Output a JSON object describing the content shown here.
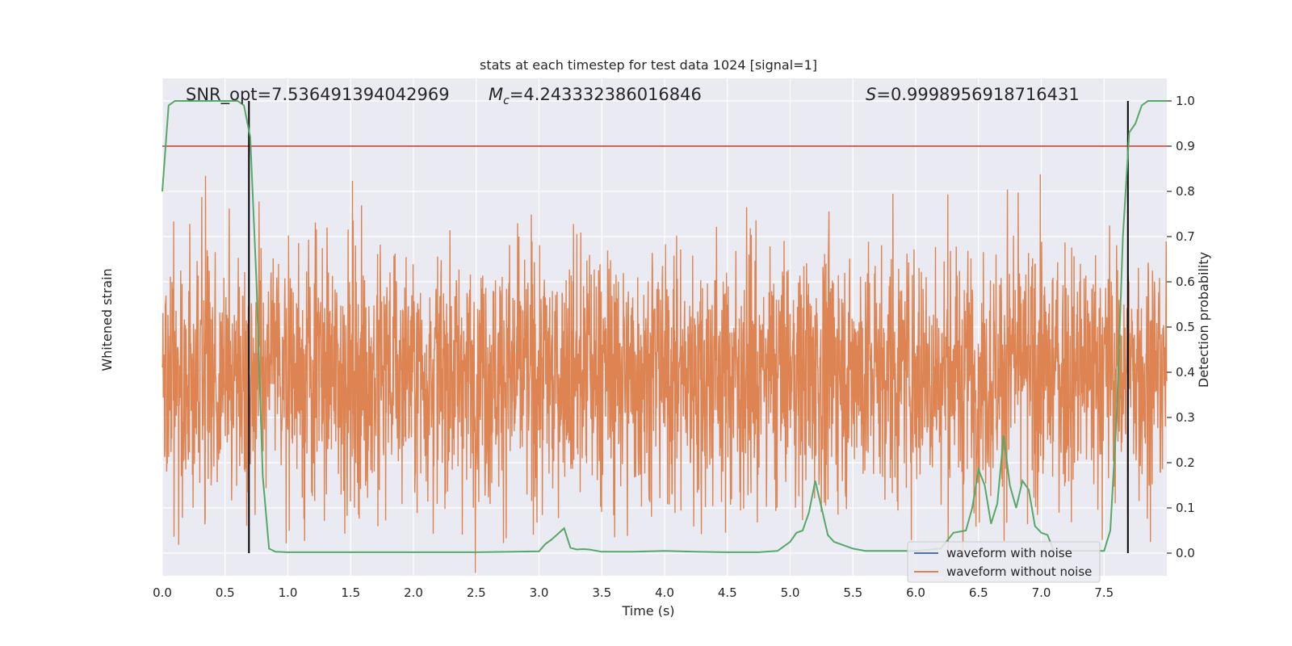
{
  "chart_data": {
    "type": "line",
    "title": "stats at each timestep for test data 1024 [signal=1]",
    "xlabel": "Time (s)",
    "ylabel_left": "Whitened strain",
    "ylabel_right": "Detection probability",
    "xlim": [
      0.0,
      8.0
    ],
    "xticks": [
      "0.0",
      "0.5",
      "1.0",
      "1.5",
      "2.0",
      "2.5",
      "3.0",
      "3.5",
      "4.0",
      "4.5",
      "5.0",
      "5.5",
      "6.0",
      "6.5",
      "7.0",
      "7.5"
    ],
    "ylim_right": [
      -0.05,
      1.05
    ],
    "yticks_right": [
      "0.0",
      "0.1",
      "0.2",
      "0.3",
      "0.4",
      "0.5",
      "0.6",
      "0.7",
      "0.8",
      "0.9",
      "1.0"
    ],
    "grid": true,
    "annotations": {
      "snr_label": "SNR_opt=7.536491394042969",
      "mc_label": "=4.243332386016846",
      "s_label": "=0.9998956918716431"
    },
    "threshold": 0.9,
    "threshold_color": "#c0392b",
    "vlines_x": [
      0.69,
      7.69
    ],
    "legend": {
      "placement": "lower-right",
      "entries": [
        "waveform with noise",
        "waveform without noise"
      ]
    },
    "colors": {
      "noise": "#4c72b0",
      "clean": "#dd8452",
      "prob": "#55a868",
      "background": "#eaeaf2"
    },
    "probability": {
      "x": [
        0.0,
        0.05,
        0.1,
        0.2,
        0.3,
        0.4,
        0.5,
        0.6,
        0.65,
        0.7,
        0.75,
        0.8,
        0.85,
        0.9,
        1.0,
        1.2,
        1.5,
        2.0,
        2.5,
        3.0,
        3.05,
        3.1,
        3.2,
        3.25,
        3.3,
        3.35,
        3.4,
        3.5,
        3.75,
        4.0,
        4.25,
        4.5,
        4.75,
        4.9,
        5.0,
        5.05,
        5.1,
        5.15,
        5.2,
        5.25,
        5.3,
        5.35,
        5.4,
        5.5,
        5.6,
        5.75,
        6.0,
        6.2,
        6.3,
        6.4,
        6.45,
        6.5,
        6.55,
        6.6,
        6.65,
        6.7,
        6.75,
        6.8,
        6.85,
        6.9,
        6.95,
        7.0,
        7.05,
        7.1,
        7.2,
        7.3,
        7.4,
        7.5,
        7.55,
        7.6,
        7.65,
        7.7,
        7.75,
        7.8,
        7.85,
        7.9,
        8.0
      ],
      "y": [
        0.8,
        0.99,
        1.0,
        1.0,
        1.0,
        1.0,
        1.0,
        1.0,
        0.99,
        0.92,
        0.6,
        0.17,
        0.01,
        0.003,
        0.002,
        0.002,
        0.002,
        0.002,
        0.002,
        0.004,
        0.02,
        0.03,
        0.055,
        0.012,
        0.008,
        0.009,
        0.008,
        0.003,
        0.003,
        0.005,
        0.003,
        0.002,
        0.002,
        0.005,
        0.025,
        0.045,
        0.05,
        0.09,
        0.16,
        0.1,
        0.04,
        0.025,
        0.02,
        0.01,
        0.005,
        0.005,
        0.005,
        0.01,
        0.045,
        0.05,
        0.1,
        0.185,
        0.15,
        0.065,
        0.11,
        0.26,
        0.15,
        0.1,
        0.16,
        0.14,
        0.06,
        0.045,
        0.04,
        0.005,
        0.005,
        0.005,
        0.005,
        0.005,
        0.05,
        0.3,
        0.7,
        0.93,
        0.95,
        0.99,
        1.0,
        1.0,
        1.0
      ]
    }
  }
}
